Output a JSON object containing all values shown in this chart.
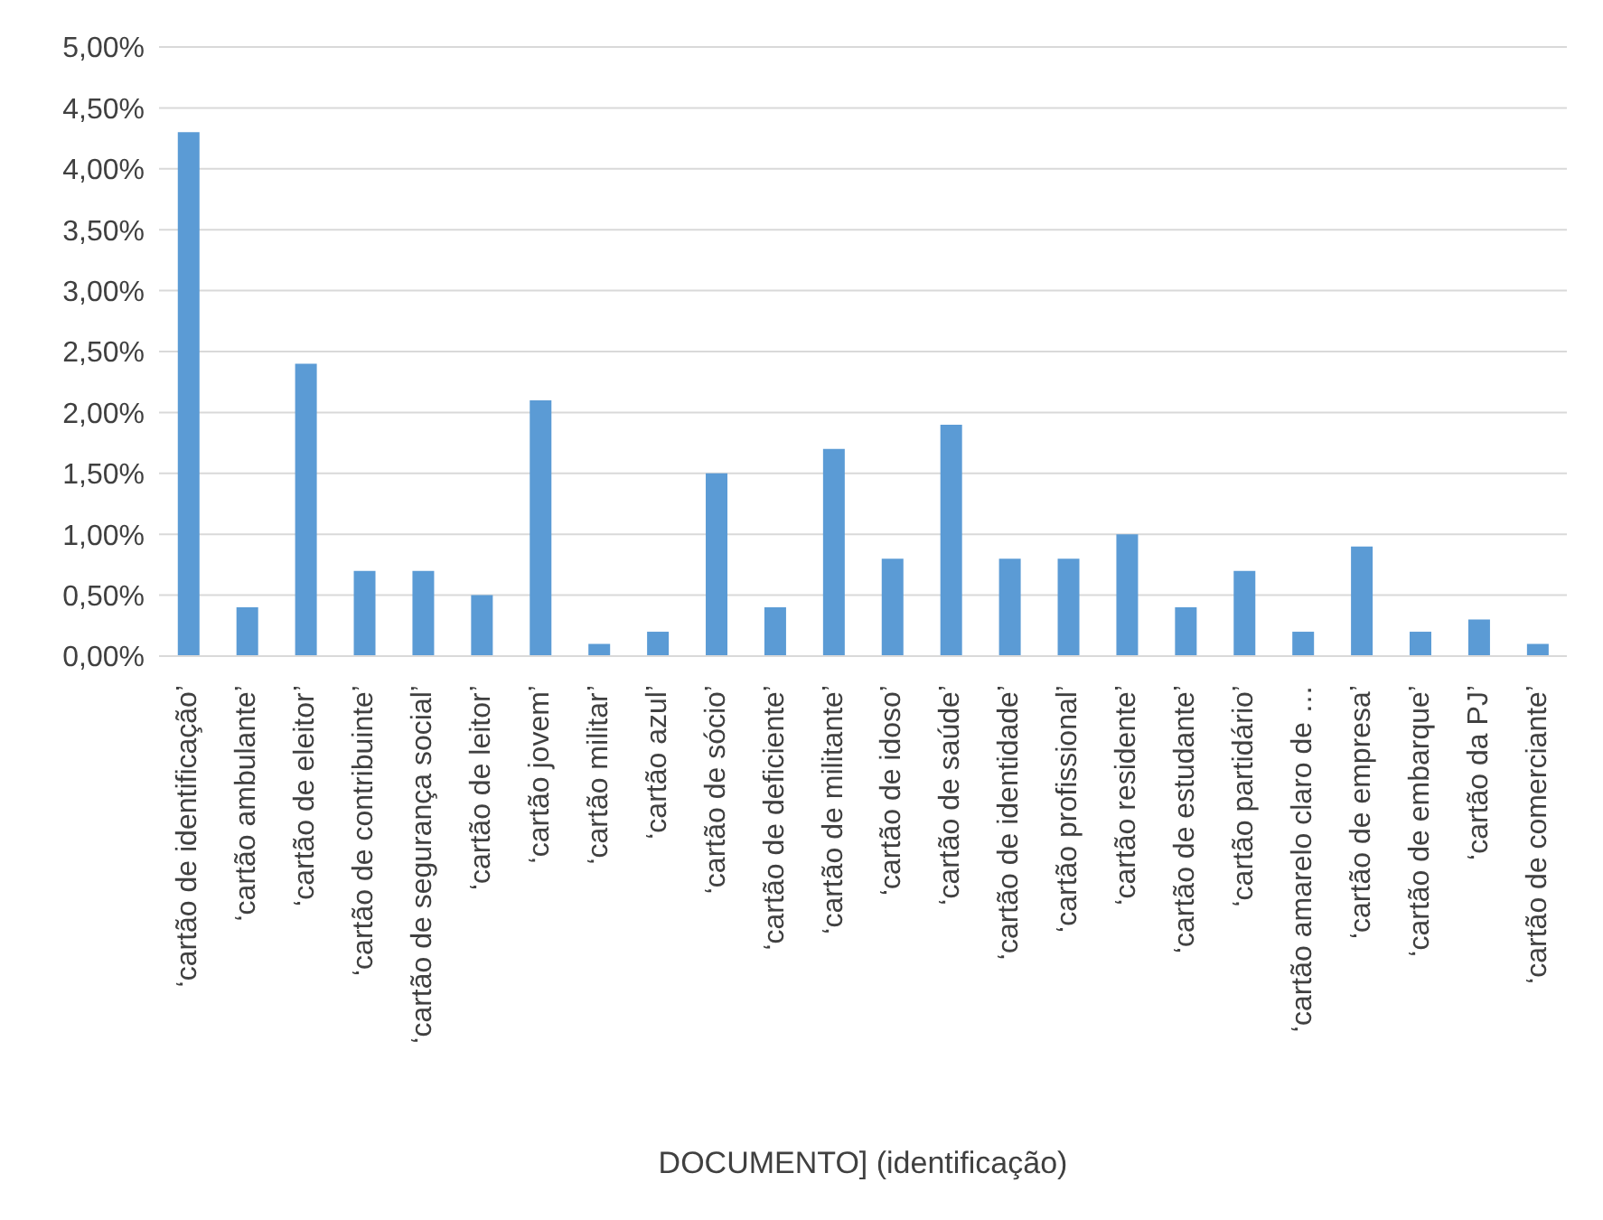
{
  "chart_data": {
    "type": "bar",
    "xlabel": "DOCUMENTO] (identificação)",
    "categories": [
      "‘cartão de identificação’",
      "‘cartão ambulante’",
      "‘cartão de eleitor’",
      "‘cartão de contribuinte’",
      "‘cartão de segurança social’",
      "‘cartão de leitor’",
      "‘cartão jovem’",
      "‘cartão militar’",
      "‘cartão azul’",
      "‘cartão de sócio’",
      "‘cartão de deficiente’",
      "‘cartão de militante’",
      "‘cartão de idoso’",
      "‘cartão de saúde’",
      "‘cartão de identidade’",
      "‘cartão profissional’",
      "‘cartão residente’",
      "‘cartão de estudante’",
      "‘cartão partidário’",
      "‘cartão amarelo claro de …",
      "‘cartão de empresa’",
      "‘cartão de embarque’",
      "‘cartão da PJ’",
      "‘cartão de comerciante’"
    ],
    "values": [
      4.3,
      0.4,
      2.4,
      0.7,
      0.7,
      0.5,
      2.1,
      0.1,
      0.2,
      1.5,
      0.4,
      1.7,
      0.8,
      1.9,
      0.8,
      0.8,
      1.0,
      0.4,
      0.7,
      0.2,
      0.9,
      0.2,
      0.3,
      0.1
    ],
    "color": "#5b9bd5",
    "ylim": [
      0,
      5
    ],
    "yticks": [
      {
        "value": 0,
        "label": "0,00%"
      },
      {
        "value": 0.5,
        "label": "0,50%"
      },
      {
        "value": 1,
        "label": "1,00%"
      },
      {
        "value": 1.5,
        "label": "1,50%"
      },
      {
        "value": 2,
        "label": "2,00%"
      },
      {
        "value": 2.5,
        "label": "2,50%"
      },
      {
        "value": 3,
        "label": "3,00%"
      },
      {
        "value": 3.5,
        "label": "3,50%"
      },
      {
        "value": 4,
        "label": "4,00%"
      },
      {
        "value": 4.5,
        "label": "4,50%"
      },
      {
        "value": 5,
        "label": "5,00%"
      }
    ],
    "grid": "y"
  }
}
